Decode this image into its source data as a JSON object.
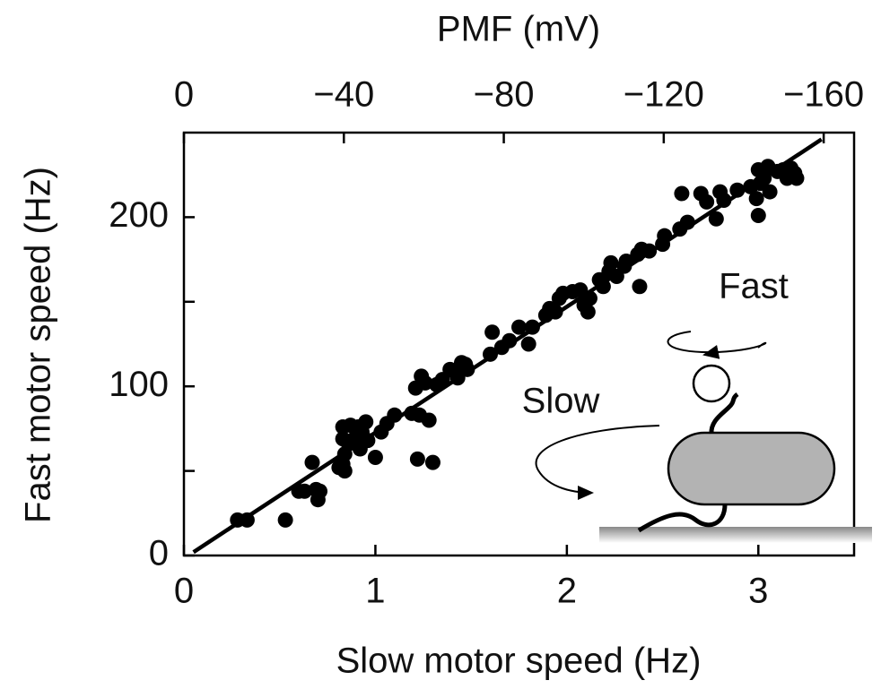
{
  "chart_data": {
    "type": "scatter",
    "xlabel": "Slow motor speed (Hz)",
    "ylabel": "Fast motor speed (Hz)",
    "x2label": "PMF (mV)",
    "xlim": [
      0,
      3.5
    ],
    "xticks": [
      0,
      1,
      2,
      3
    ],
    "ylim": [
      0,
      250
    ],
    "yticks": [
      0,
      100,
      200
    ],
    "yminorticks": [
      50,
      150
    ],
    "x2lim": [
      0,
      -167.6
    ],
    "x2ticks": [
      0,
      {
        "value": -40,
        "label": "−40"
      },
      {
        "value": -80,
        "label": "−80"
      },
      {
        "value": -120,
        "label": "−120"
      },
      {
        "value": -160,
        "label": "−160"
      }
    ],
    "color": "#000000",
    "x": [
      0.28,
      0.33,
      0.53,
      0.6,
      0.63,
      0.67,
      0.69,
      0.7,
      0.71,
      0.81,
      0.83,
      0.84,
      0.83,
      0.83,
      0.87,
      0.91,
      0.93,
      0.86,
      0.89,
      0.92,
      0.96,
      1.0,
      0.95,
      0.84,
      1.03,
      1.06,
      1.1,
      1.19,
      1.21,
      1.24,
      1.26,
      1.22,
      1.3,
      1.23,
      1.28,
      1.32,
      1.35,
      1.39,
      1.42,
      1.45,
      1.47,
      1.43,
      1.48,
      1.6,
      1.61,
      1.66,
      1.7,
      1.75,
      1.8,
      1.82,
      1.89,
      1.91,
      1.94,
      1.96,
      1.98,
      2.03,
      2.07,
      2.09,
      2.12,
      2.11,
      2.17,
      2.19,
      2.22,
      2.23,
      2.26,
      2.3,
      2.31,
      2.38,
      2.37,
      2.39,
      2.43,
      2.5,
      2.51,
      2.59,
      2.6,
      2.63,
      2.7,
      2.73,
      2.8,
      2.78,
      2.82,
      2.89,
      2.96,
      2.99,
      3.0,
      3.0,
      3.01,
      3.03,
      3.05,
      3.06,
      3.1,
      3.13,
      3.15,
      3.17,
      3.19,
      3.2
    ],
    "values": [
      21,
      21,
      21,
      38,
      38,
      55,
      39,
      33,
      38,
      52,
      54,
      50,
      69,
      76,
      77,
      76,
      73,
      66,
      69,
      63,
      68,
      58,
      79,
      60,
      73,
      78,
      83,
      84,
      99,
      106,
      102,
      57,
      55,
      83,
      80,
      101,
      104,
      110,
      108,
      114,
      113,
      105,
      110,
      119,
      132,
      123,
      127,
      135,
      125,
      135,
      142,
      146,
      144,
      152,
      155,
      156,
      157,
      148,
      152,
      144,
      163,
      159,
      168,
      173,
      165,
      171,
      174,
      159,
      178,
      181,
      180,
      184,
      189,
      193,
      214,
      197,
      214,
      209,
      215,
      199,
      210,
      216,
      218,
      211,
      228,
      201,
      220,
      223,
      230,
      215,
      227,
      228,
      223,
      229,
      226,
      223
    ],
    "fit_line": {
      "x": [
        0.05,
        3.33
      ],
      "y": [
        2,
        246
      ]
    },
    "annotations": [
      "Fast",
      "Slow"
    ]
  }
}
